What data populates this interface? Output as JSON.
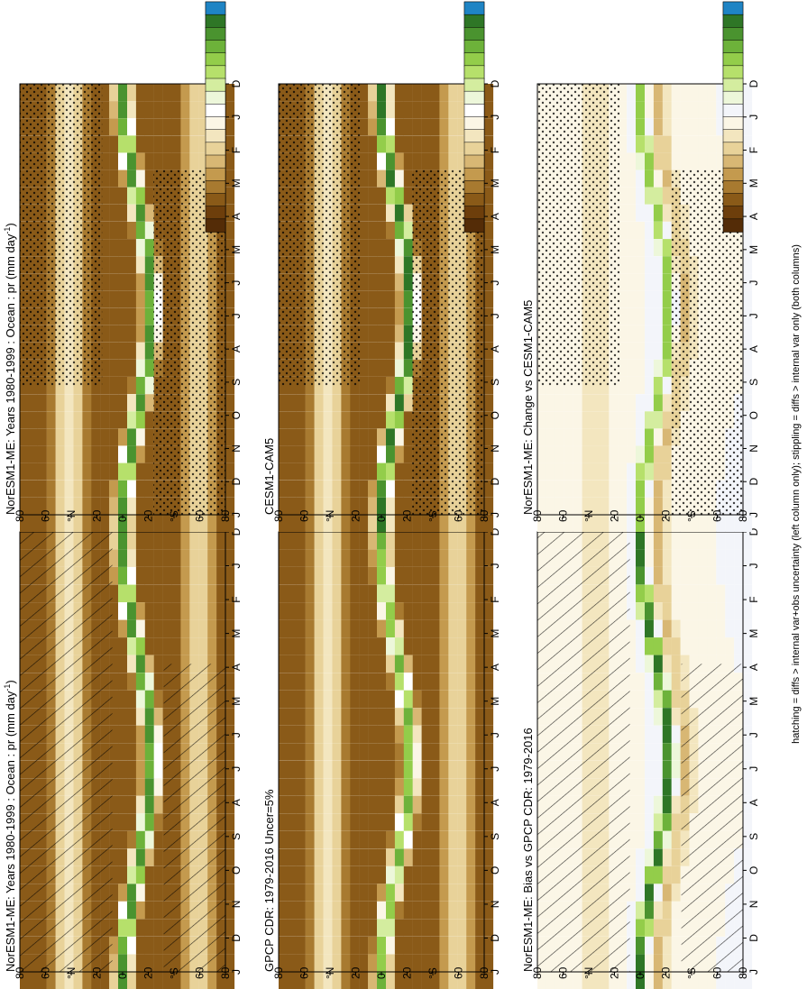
{
  "figure": {
    "caption": "hatching = diffs > internal var+obs uncertainty (left column only); stippling = diffs > internal var only (both columns)"
  },
  "palettes": {
    "absolute": [
      "#542c07",
      "#6d3e0b",
      "#8a5a18",
      "#a87a30",
      "#c49a4e",
      "#d8b774",
      "#e8d299",
      "#f3e6bf",
      "#fbf6e6",
      "#ffffff",
      "#edf7da",
      "#d4ed9f",
      "#b6e06b",
      "#93cd4a",
      "#6db23a",
      "#4a932f",
      "#2e7626",
      "#1f84c4"
    ],
    "difference": [
      "#542c07",
      "#6d3e0b",
      "#8a5a18",
      "#a87a30",
      "#c49a4e",
      "#d8b774",
      "#e8d299",
      "#f3e6bf",
      "#fbf6e6",
      "#f3f5fa",
      "#edf7da",
      "#d4ed9f",
      "#b6e06b",
      "#93cd4a",
      "#6db23a",
      "#4a932f",
      "#2e7626",
      "#1f84c4"
    ]
  },
  "month_labels": [
    "D",
    "J",
    "F",
    "M",
    "A",
    "M",
    "J",
    "J",
    "A",
    "S",
    "O",
    "N",
    "D",
    "J"
  ],
  "lat_labels": [
    "80",
    "60",
    "°N",
    "20",
    "0",
    "20",
    "°S",
    "60",
    "80"
  ],
  "chart_data": [
    {
      "type": "heatmap",
      "title": "NorESM1-ME: Years 1980-1999 : Ocean : pr (mm day",
      "title_sup": "-1",
      "title_end": ")",
      "x": [
        "D",
        "J",
        "F",
        "M",
        "A",
        "M",
        "J",
        "J",
        "A",
        "S",
        "O",
        "N",
        "D",
        "J"
      ],
      "y": [
        "80",
        "60",
        "°N",
        "20",
        "0",
        "20",
        "°S",
        "60",
        "80"
      ],
      "colorbar_ticks": [
        "10",
        "9",
        "8",
        "7",
        "6",
        "5",
        "4",
        "3",
        "2",
        "1",
        "0"
      ],
      "colorbar_range": [
        0,
        10
      ],
      "palette": "absolute",
      "overlay": "hatching",
      "itcz_peak": 9.5
    },
    {
      "type": "heatmap",
      "title": "GPCP CDR: 1979-2016 Uncer=5%",
      "x": [
        "D",
        "J",
        "F",
        "M",
        "A",
        "M",
        "J",
        "J",
        "A",
        "S",
        "O",
        "N",
        "D",
        "J"
      ],
      "y": [
        "80",
        "60",
        "°N",
        "20",
        "0",
        "20",
        "°S",
        "60",
        "80"
      ],
      "colorbar_ticks": [
        "10",
        "9",
        "8",
        "7",
        "6",
        "5",
        "4",
        "3",
        "2",
        "1",
        "0"
      ],
      "colorbar_range": [
        0,
        10
      ],
      "palette": "absolute",
      "overlay": "none",
      "itcz_peak": 8.5
    },
    {
      "type": "heatmap",
      "title": "NorESM1-ME: Bias vs GPCP CDR: 1979-2016",
      "x": [
        "D",
        "J",
        "F",
        "M",
        "A",
        "M",
        "J",
        "J",
        "A",
        "S",
        "O",
        "N",
        "D",
        "J"
      ],
      "y": [
        "80",
        "60",
        "°N",
        "20",
        "0",
        "20",
        "°S",
        "60",
        "80"
      ],
      "colorbar_ticks": [
        "5",
        "4",
        "3",
        "2",
        "1",
        "0",
        "-1",
        "-2",
        "-3",
        "-4",
        "-5"
      ],
      "colorbar_range": [
        -5,
        5
      ],
      "palette": "difference",
      "overlay": "hatching",
      "itcz_peak": 4.5
    },
    {
      "type": "heatmap",
      "title": "NorESM1-ME: Years 1980-1999 : Ocean : pr (mm day",
      "title_sup": "-1",
      "title_end": ")",
      "x": [
        "D",
        "J",
        "F",
        "M",
        "A",
        "M",
        "J",
        "J",
        "A",
        "S",
        "O",
        "N",
        "D",
        "J"
      ],
      "y": [
        "80",
        "60",
        "°N",
        "20",
        "0",
        "20",
        "°S",
        "60",
        "80"
      ],
      "colorbar_ticks": [
        "10",
        "9",
        "8",
        "7",
        "6",
        "5",
        "4",
        "3",
        "2",
        "1",
        "0"
      ],
      "colorbar_range": [
        0,
        10
      ],
      "palette": "absolute",
      "overlay": "stippling",
      "itcz_peak": 9.5
    },
    {
      "type": "heatmap",
      "title": "CESM1-CAM5",
      "x": [
        "D",
        "J",
        "F",
        "M",
        "A",
        "M",
        "J",
        "J",
        "A",
        "S",
        "O",
        "N",
        "D",
        "J"
      ],
      "y": [
        "80",
        "60",
        "°N",
        "20",
        "0",
        "20",
        "°S",
        "60",
        "80"
      ],
      "colorbar_ticks": [
        "10",
        "9",
        "8",
        "7",
        "6",
        "5",
        "4",
        "3",
        "2",
        "1",
        "0"
      ],
      "colorbar_range": [
        0,
        10
      ],
      "palette": "absolute",
      "overlay": "stippling",
      "itcz_peak": 10.0
    },
    {
      "type": "heatmap",
      "title": "NorESM1-ME: Change vs CESM1-CAM5",
      "x": [
        "D",
        "J",
        "F",
        "M",
        "A",
        "M",
        "J",
        "J",
        "A",
        "S",
        "O",
        "N",
        "D",
        "J"
      ],
      "y": [
        "80",
        "60",
        "°N",
        "20",
        "0",
        "20",
        "°S",
        "60",
        "80"
      ],
      "colorbar_ticks": [
        "5",
        "4",
        "3",
        "2",
        "1",
        "0",
        "-1",
        "-2",
        "-3",
        "-4",
        "-5"
      ],
      "colorbar_range": [
        -5,
        5
      ],
      "palette": "difference",
      "overlay": "stippling",
      "itcz_peak": 3.0
    }
  ]
}
